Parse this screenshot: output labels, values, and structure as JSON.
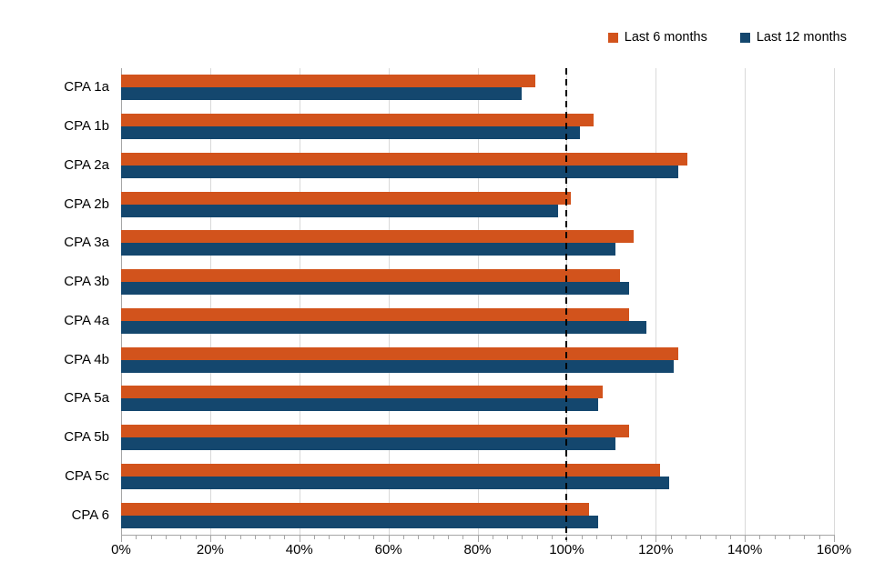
{
  "chart_data": {
    "type": "bar",
    "orientation": "horizontal",
    "title": "",
    "xlabel": "",
    "ylabel": "",
    "categories": [
      "CPA 1a",
      "CPA 1b",
      "CPA 2a",
      "CPA 2b",
      "CPA 3a",
      "CPA 3b",
      "CPA 4a",
      "CPA 4b",
      "CPA 5a",
      "CPA 5b",
      "CPA 5c",
      "CPA 6"
    ],
    "series": [
      {
        "name": "Last 6 months",
        "color": "#d2531c",
        "values": [
          93,
          106,
          127,
          101,
          115,
          112,
          114,
          125,
          108,
          114,
          121,
          105
        ]
      },
      {
        "name": "Last 12 months",
        "color": "#14476e",
        "values": [
          90,
          103,
          125,
          98,
          111,
          114,
          118,
          124,
          107,
          111,
          123,
          107
        ]
      }
    ],
    "xlim": [
      0,
      160
    ],
    "x_ticks": [
      "0%",
      "20%",
      "40%",
      "60%",
      "80%",
      "100%",
      "120%",
      "140%",
      "160%"
    ],
    "x_major_step_pct": 20,
    "x_minor_divisions_per_major": 6,
    "reference_line": {
      "value": 100,
      "style": "dashed",
      "color": "#000000"
    },
    "grid": "vertical-major",
    "legend_position": "top-right",
    "colors": {
      "background": "#ffffff",
      "gridline": "#d9d9d9",
      "axis": "#a6a6a6",
      "text": "#000000"
    }
  }
}
